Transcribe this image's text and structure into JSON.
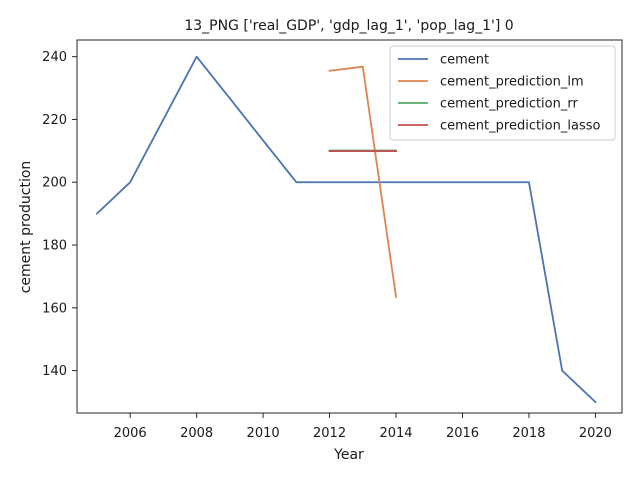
{
  "chart_data": {
    "type": "line",
    "title": "13_PNG ['real_GDP', 'gdp_lag_1', 'pop_lag_1'] 0",
    "xlabel": "Year",
    "ylabel": "cement production",
    "xlim": [
      2004.4,
      2020.8
    ],
    "ylim": [
      126.5,
      245.3
    ],
    "xticks": [
      2006,
      2008,
      2010,
      2012,
      2014,
      2016,
      2018,
      2020
    ],
    "yticks": [
      140,
      160,
      180,
      200,
      220,
      240
    ],
    "grid": false,
    "legend_position": "top-right",
    "series": [
      {
        "name": "cement",
        "color": "#4c72b0",
        "x": [
          2005,
          2006,
          2007,
          2008,
          2009,
          2010,
          2011,
          2012,
          2013,
          2014,
          2015,
          2016,
          2017,
          2018,
          2019,
          2020
        ],
        "y": [
          190,
          200,
          220,
          240,
          226.7,
          213.3,
          200,
          200,
          200,
          200,
          200,
          200,
          200,
          200,
          140,
          130
        ]
      },
      {
        "name": "cement_prediction_lm",
        "color": "#dd8452",
        "x": [
          2012,
          2013,
          2014
        ],
        "y": [
          235.5,
          236.8,
          163.5
        ]
      },
      {
        "name": "cement_prediction_rr",
        "color": "#55a868",
        "x": [
          2012,
          2013,
          2014
        ],
        "y": [
          210.1,
          210.1,
          210.1
        ]
      },
      {
        "name": "cement_prediction_lasso",
        "color": "#c44e52",
        "x": [
          2012,
          2013,
          2014
        ],
        "y": [
          209.9,
          209.9,
          209.9
        ]
      }
    ]
  }
}
